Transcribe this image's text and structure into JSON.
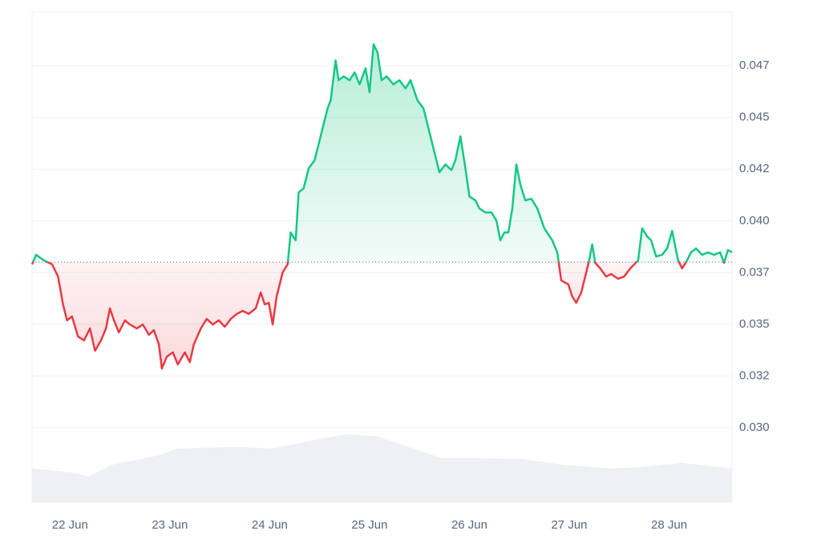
{
  "chart_data": {
    "type": "line",
    "x": [
      21.62,
      21.66,
      21.74,
      21.82,
      21.88,
      21.93,
      21.97,
      22.02,
      22.08,
      22.14,
      22.2,
      22.25,
      22.31,
      22.36,
      22.4,
      22.44,
      22.49,
      22.55,
      22.6,
      22.67,
      22.73,
      22.79,
      22.84,
      22.89,
      22.92,
      22.97,
      23.03,
      23.08,
      23.15,
      23.2,
      23.24,
      23.31,
      23.37,
      23.43,
      23.49,
      23.55,
      23.61,
      23.67,
      23.73,
      23.79,
      23.86,
      23.91,
      23.95,
      23.99,
      24.03,
      24.07,
      24.13,
      24.18,
      24.21,
      24.26,
      24.29,
      24.34,
      24.39,
      24.45,
      24.51,
      24.58,
      24.61,
      24.66,
      24.69,
      24.74,
      24.8,
      24.85,
      24.9,
      24.96,
      25.0,
      25.04,
      25.08,
      25.12,
      25.17,
      25.24,
      25.3,
      25.36,
      25.41,
      25.48,
      25.54,
      25.6,
      25.65,
      25.7,
      25.76,
      25.82,
      25.86,
      25.91,
      25.96,
      26.0,
      26.06,
      26.1,
      26.16,
      26.22,
      26.27,
      26.31,
      26.35,
      26.39,
      26.43,
      26.47,
      26.51,
      26.56,
      26.62,
      26.68,
      26.75,
      26.83,
      26.88,
      26.92,
      26.99,
      27.03,
      27.07,
      27.12,
      27.16,
      27.2,
      27.23,
      27.26,
      27.31,
      27.37,
      27.42,
      27.49,
      27.55,
      27.61,
      27.69,
      27.73,
      27.78,
      27.82,
      27.87,
      27.93,
      27.98,
      28.03,
      28.09,
      28.13,
      28.18,
      28.22,
      28.27,
      28.33,
      28.39,
      28.45,
      28.51,
      28.55,
      28.59,
      28.63
    ],
    "series": [
      {
        "values": [
          0.0379,
          0.03836,
          0.03809,
          0.0379,
          0.03731,
          0.03596,
          0.03519,
          0.03538,
          0.03441,
          0.03422,
          0.0348,
          0.03372,
          0.03422,
          0.0348,
          0.03577,
          0.03519,
          0.03461,
          0.03519,
          0.03499,
          0.0348,
          0.03499,
          0.03449,
          0.03472,
          0.03402,
          0.03286,
          0.03344,
          0.03364,
          0.03306,
          0.03364,
          0.03317,
          0.03402,
          0.0348,
          0.03526,
          0.03499,
          0.03519,
          0.03488,
          0.03526,
          0.0355,
          0.03565,
          0.0355,
          0.03577,
          0.03654,
          0.03596,
          0.03604,
          0.03499,
          0.03635,
          0.03751,
          0.0379,
          0.03944,
          0.03906,
          0.04138,
          0.04157,
          0.04254,
          0.04293,
          0.04409,
          0.04544,
          0.04583,
          0.04776,
          0.0468,
          0.04699,
          0.0468,
          0.04718,
          0.0466,
          0.04738,
          0.04622,
          0.04854,
          0.04815,
          0.0468,
          0.04699,
          0.0466,
          0.0468,
          0.04641,
          0.0468,
          0.04583,
          0.04544,
          0.04428,
          0.04331,
          0.04235,
          0.04273,
          0.04246,
          0.04293,
          0.04409,
          0.04254,
          0.04118,
          0.04099,
          0.0406,
          0.04041,
          0.04041,
          0.04002,
          0.03906,
          0.03944,
          0.03944,
          0.0406,
          0.04273,
          0.04176,
          0.04099,
          0.04107,
          0.0406,
          0.03964,
          0.03906,
          0.03848,
          0.03712,
          0.03693,
          0.03635,
          0.03604,
          0.03654,
          0.03731,
          0.03809,
          0.03886,
          0.03797,
          0.0377,
          0.03731,
          0.03743,
          0.0372,
          0.03731,
          0.0377,
          0.03809,
          0.03964,
          0.03925,
          0.03906,
          0.03828,
          0.03836,
          0.03867,
          0.03952,
          0.03809,
          0.0377,
          0.03809,
          0.03848,
          0.03867,
          0.03836,
          0.03848,
          0.03836,
          0.03848,
          0.03797,
          0.03859,
          0.03848
        ]
      }
    ],
    "baseline": 0.03801,
    "up_color": "#16c784",
    "down_color": "#ea3943",
    "xlim": [
      21.62,
      28.63
    ],
    "xticks": [
      {
        "value": 22,
        "label": "22 Jun"
      },
      {
        "value": 23,
        "label": "23 Jun"
      },
      {
        "value": 24,
        "label": "24 Jun"
      },
      {
        "value": 25,
        "label": "25 Jun"
      },
      {
        "value": 26,
        "label": "26 Jun"
      },
      {
        "value": 27,
        "label": "27 Jun"
      },
      {
        "value": 28,
        "label": "28 Jun"
      }
    ],
    "ylim": [
      0.0264,
      0.0501
    ],
    "yticks": [
      {
        "value": 0.03,
        "label": "0.030"
      },
      {
        "value": 0.0325,
        "label": "0.032"
      },
      {
        "value": 0.035,
        "label": "0.035"
      },
      {
        "value": 0.0375,
        "label": "0.037"
      },
      {
        "value": 0.04,
        "label": "0.040"
      },
      {
        "value": 0.0425,
        "label": "0.042"
      },
      {
        "value": 0.045,
        "label": "0.045"
      },
      {
        "value": 0.0475,
        "label": "0.047"
      }
    ],
    "grid": true,
    "volume": {
      "color": "#eef0f3",
      "ylim": [
        0,
        100
      ],
      "x": [
        21.62,
        22.02,
        22.18,
        22.43,
        22.91,
        23.07,
        23.71,
        24.03,
        24.51,
        24.76,
        25.08,
        25.32,
        25.72,
        26.12,
        26.52,
        26.92,
        27.41,
        27.73,
        28.13,
        28.63
      ],
      "values": [
        42,
        37,
        32,
        47,
        59,
        67,
        69,
        67,
        79,
        85,
        82,
        72,
        55,
        55,
        54,
        47,
        42,
        44,
        49,
        42
      ]
    }
  }
}
